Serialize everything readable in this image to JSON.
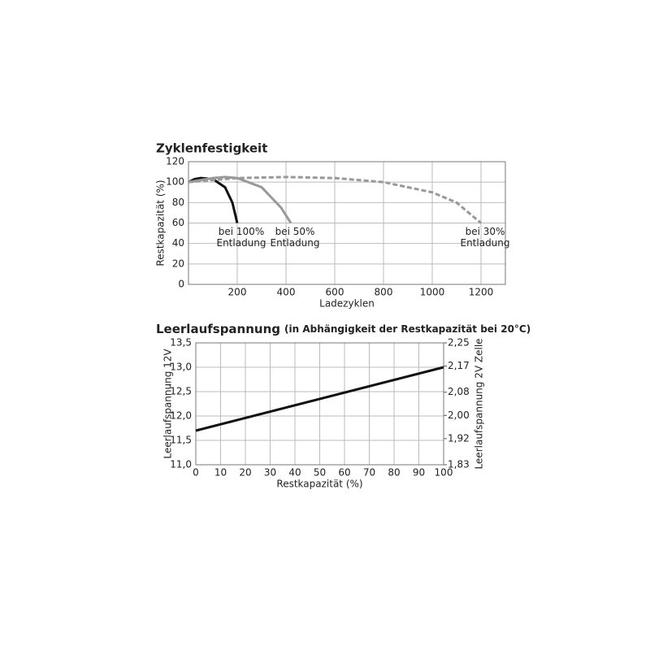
{
  "chart_data": [
    {
      "type": "line",
      "title": "Zyklenfestigkeit",
      "x_label": "Ladezyklen",
      "y_label": "Restkapazität (%)",
      "xlim": [
        0,
        1300
      ],
      "xticks": [
        200,
        400,
        600,
        800,
        1000,
        1200
      ],
      "ylim": [
        0,
        120
      ],
      "yticks": [
        0,
        20,
        40,
        60,
        80,
        100,
        120
      ],
      "grid": true,
      "series": [
        {
          "label": [
            "bei 100%",
            "Entladung"
          ],
          "color": "#111111",
          "dashed": false,
          "x": [
            0,
            25,
            50,
            100,
            150,
            180,
            200
          ],
          "values": [
            100,
            103,
            104,
            103,
            95,
            80,
            60
          ]
        },
        {
          "label": [
            "bei 50%",
            "Entladung"
          ],
          "color": "#999999",
          "dashed": false,
          "x": [
            0,
            100,
            150,
            200,
            300,
            380,
            420
          ],
          "values": [
            100,
            104,
            105,
            104,
            95,
            75,
            60
          ]
        },
        {
          "label": [
            "bei 30%",
            "Entladung"
          ],
          "color": "#999999",
          "dashed": true,
          "x": [
            0,
            200,
            400,
            600,
            800,
            1000,
            1100,
            1200
          ],
          "values": [
            100,
            104,
            105,
            104,
            100,
            90,
            80,
            60
          ]
        }
      ]
    },
    {
      "type": "line",
      "title": "Leerlaufspannung",
      "subtitle": "(in Abhängigkeit der Restkapazität bei 20°C)",
      "x_label": "Restkapazität (%)",
      "y_label": "Leerlaufspannung 12V",
      "y2_label": "Leerlaufspannung 2V Zelle",
      "xlim": [
        0,
        100
      ],
      "xticks": [
        0,
        10,
        20,
        30,
        40,
        50,
        60,
        70,
        80,
        90,
        100
      ],
      "ylim": [
        11.0,
        13.5
      ],
      "yticks": [
        {
          "value": 11.0,
          "label": "11,0"
        },
        {
          "value": 11.5,
          "label": "11,5"
        },
        {
          "value": 12.0,
          "label": "12,0"
        },
        {
          "value": 12.5,
          "label": "12,5"
        },
        {
          "value": 13.0,
          "label": "13,0"
        },
        {
          "value": 13.5,
          "label": "13,5"
        }
      ],
      "y2lim": [
        1.83,
        2.25
      ],
      "y2ticks": [
        {
          "value": 1.83,
          "label": "1,83"
        },
        {
          "value": 1.92,
          "label": "1,92"
        },
        {
          "value": 2.0,
          "label": "2,00"
        },
        {
          "value": 2.08,
          "label": "2,08"
        },
        {
          "value": 2.17,
          "label": "2,17"
        },
        {
          "value": 2.25,
          "label": "2,25"
        }
      ],
      "grid": true,
      "series": [
        {
          "color": "#111111",
          "dashed": false,
          "x": [
            0,
            100
          ],
          "values": [
            11.7,
            13.0
          ]
        }
      ]
    }
  ]
}
